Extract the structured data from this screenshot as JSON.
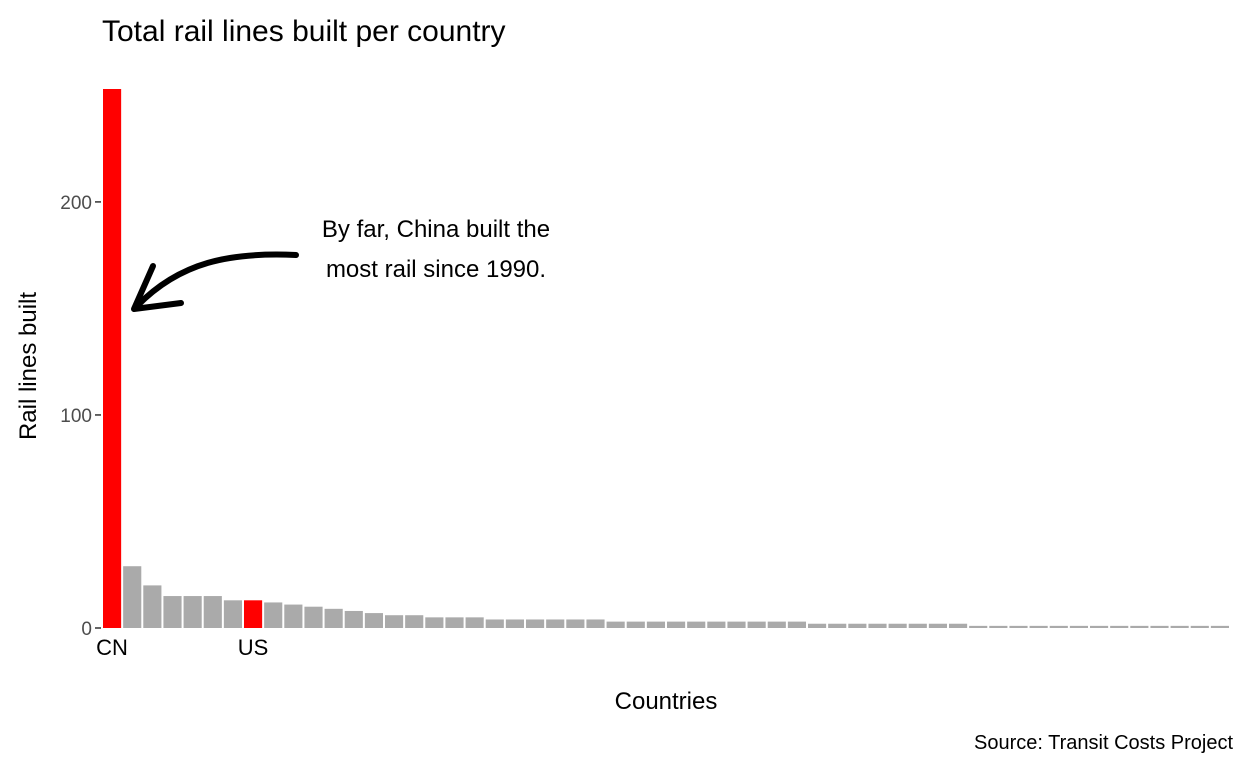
{
  "chart_data": {
    "type": "bar",
    "title": "Total rail lines built per country",
    "xlabel": "Countries",
    "ylabel": "Rail lines built",
    "caption": "Source: Transit Costs Project",
    "annotation": [
      "By far, China built the",
      "most rail since 1990."
    ],
    "ylim": [
      0,
      253
    ],
    "yticks": [
      0,
      100,
      200
    ],
    "grid": false,
    "legend": "none",
    "highlight_color": "#ff0000",
    "base_color": "#aaaaaa",
    "categories": [
      "CN",
      "",
      "",
      "",
      "",
      "",
      "",
      "US",
      "",
      "",
      "",
      "",
      "",
      "",
      "",
      "",
      "",
      "",
      "",
      "",
      "",
      "",
      "",
      "",
      "",
      "",
      "",
      "",
      "",
      "",
      "",
      "",
      "",
      "",
      "",
      "",
      "",
      "",
      "",
      "",
      "",
      "",
      "",
      "",
      "",
      "",
      "",
      "",
      "",
      "",
      "",
      "",
      "",
      "",
      "",
      ""
    ],
    "values": [
      253,
      29,
      20,
      15,
      15,
      15,
      13,
      13,
      12,
      11,
      10,
      9,
      8,
      7,
      6,
      6,
      5,
      5,
      5,
      4,
      4,
      4,
      4,
      4,
      4,
      3,
      3,
      3,
      3,
      3,
      3,
      3,
      3,
      3,
      3,
      2,
      2,
      2,
      2,
      2,
      2,
      2,
      2,
      1,
      1,
      1,
      1,
      1,
      1,
      1,
      1,
      1,
      1,
      1,
      1,
      1
    ],
    "highlighted": [
      "CN",
      "US"
    ]
  }
}
